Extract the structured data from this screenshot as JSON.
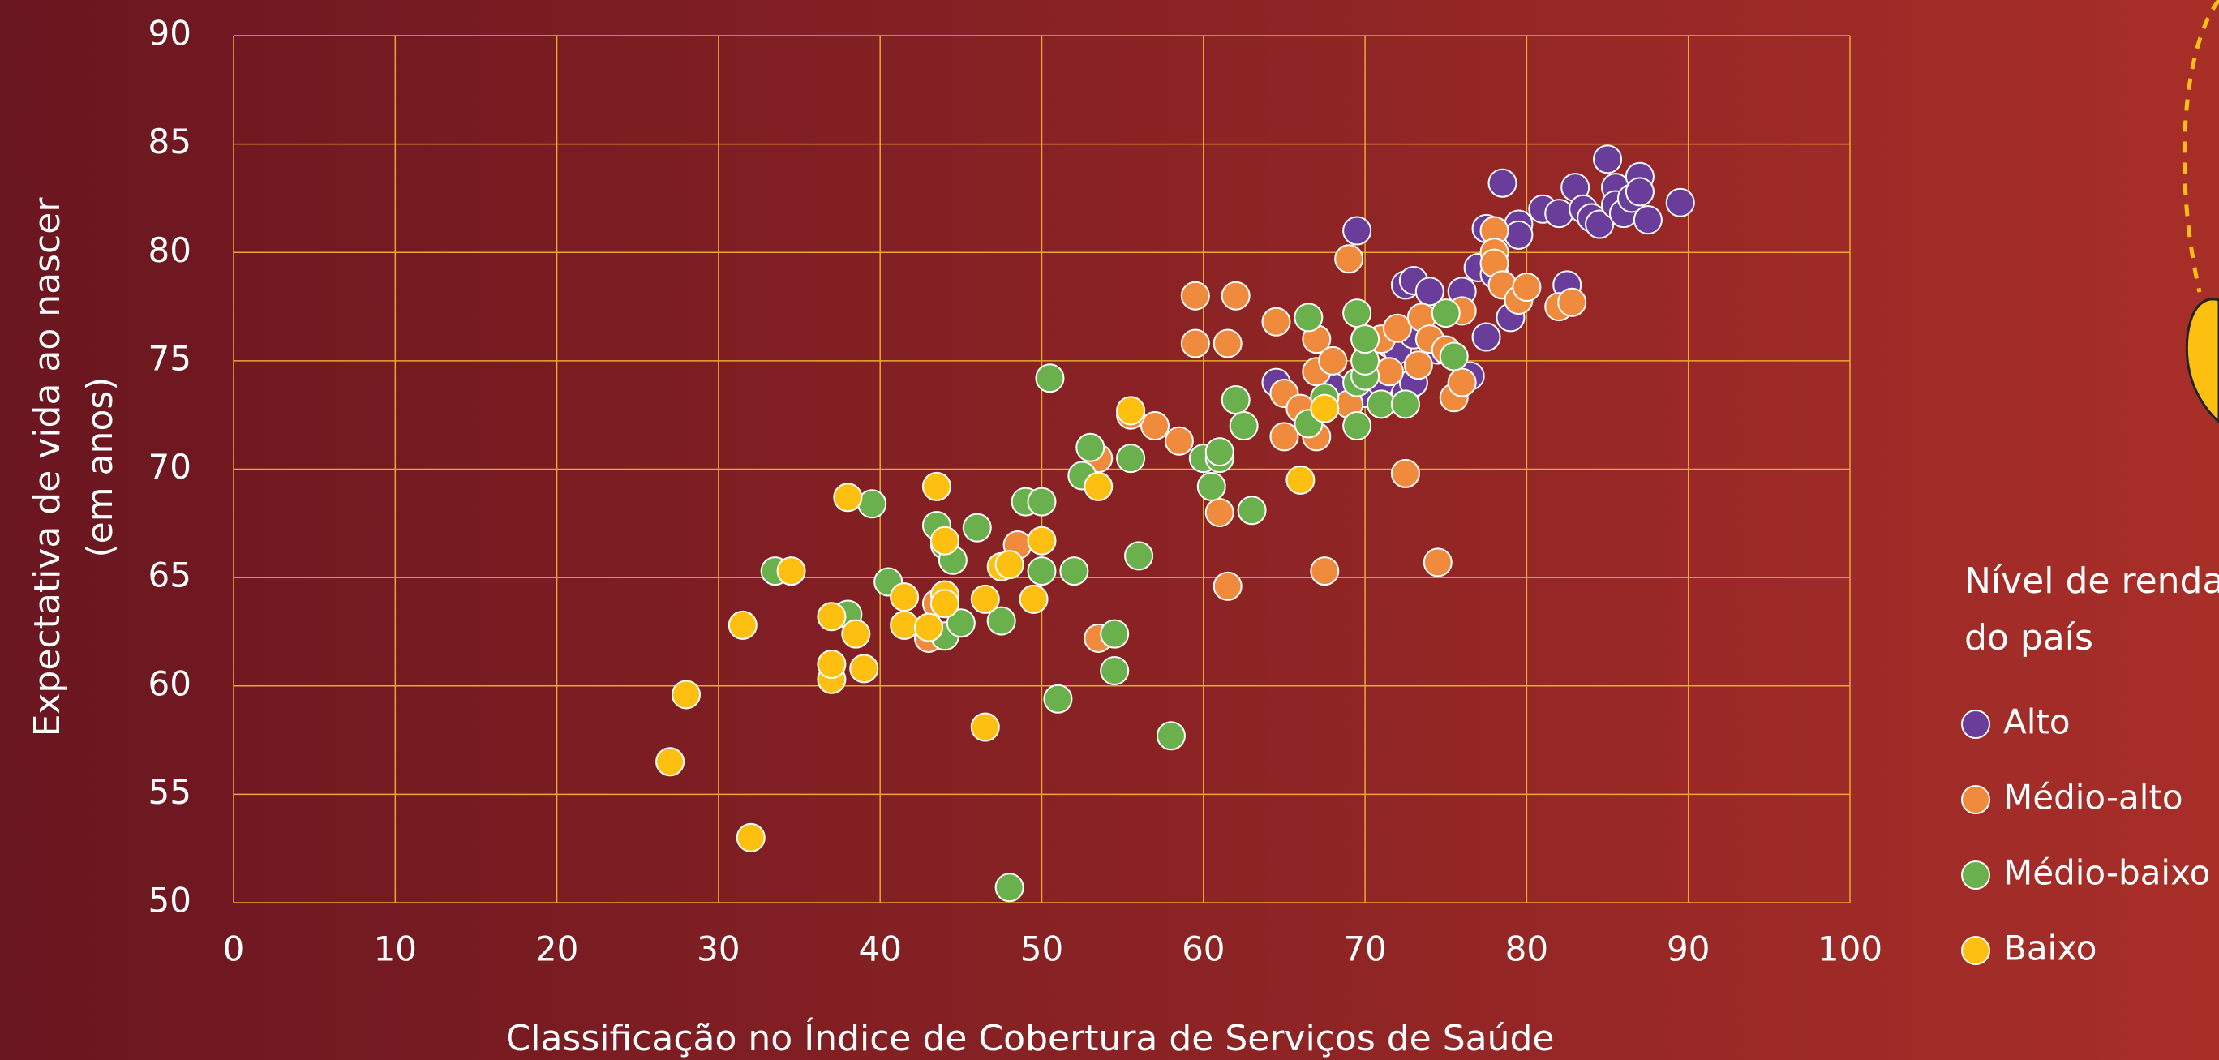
{
  "chart_data": {
    "type": "scatter",
    "xlabel": "Classificação no Índice de Cobertura de Serviços de Saúde",
    "ylabel": [
      "Expectativa de vida ao nascer",
      "(em anos)"
    ],
    "legend_title": [
      "Nível de renda",
      "do país"
    ],
    "legend": "right",
    "grid": true,
    "xlim": [
      0,
      100
    ],
    "xticks": [
      0,
      10,
      20,
      30,
      40,
      50,
      60,
      70,
      80,
      90,
      100
    ],
    "ylim": [
      50,
      90
    ],
    "yticks": [
      50,
      55,
      60,
      65,
      70,
      75,
      80,
      85,
      90
    ],
    "series": [
      {
        "name": "Alto",
        "color": "#6a3d9a",
        "x": [
          69.5,
          64.5,
          72.5,
          73,
          74,
          76,
          77,
          77.5,
          78.5,
          79.5,
          79.5,
          78,
          79,
          77.5,
          76.5,
          82.5,
          81,
          82,
          83,
          83.5,
          84,
          84.5,
          85,
          85.5,
          85.5,
          86,
          86.5,
          87,
          87,
          87.5,
          89.5,
          70,
          71,
          71.5,
          72,
          73,
          74.5,
          68,
          72.5,
          73
        ],
        "values": [
          81,
          74,
          78.5,
          78.7,
          78.2,
          78.2,
          79.3,
          81.1,
          83.2,
          81.3,
          80.8,
          79,
          77,
          76.1,
          74.3,
          78.5,
          82,
          81.8,
          83,
          82,
          81.6,
          81.3,
          84.3,
          83,
          82.2,
          81.8,
          82.5,
          83.5,
          82.8,
          81.5,
          82.3,
          73.5,
          74,
          75.8,
          75.5,
          76.2,
          75.5,
          73.8,
          73.5,
          74
        ]
      },
      {
        "name": "Médio-alto",
        "color": "#f08a3c",
        "x": [
          59.5,
          62,
          59.5,
          61.5,
          64.5,
          67,
          69,
          70,
          71,
          72,
          73.5,
          74,
          75,
          76,
          78,
          78,
          78,
          78.5,
          79.5,
          80,
          82,
          82.8,
          65,
          66,
          65,
          67,
          67,
          68,
          69,
          71.5,
          73.3,
          75.5,
          76,
          57,
          55.5,
          58.5,
          53.5,
          61,
          61.5,
          67.5,
          72.5,
          74.5,
          53.5,
          48.5,
          43,
          43.5
        ],
        "values": [
          78,
          78,
          75.8,
          75.8,
          76.8,
          76,
          79.7,
          76,
          76,
          76.5,
          77,
          76,
          75.5,
          77.3,
          81,
          80,
          79.5,
          78.5,
          77.8,
          78.4,
          77.5,
          77.7,
          73.5,
          72.8,
          71.5,
          71.5,
          74.5,
          75,
          73,
          74.5,
          74.8,
          73.3,
          74,
          72,
          72.5,
          71.3,
          70.5,
          68,
          64.6,
          65.3,
          69.8,
          65.7,
          62.2,
          66.5,
          62.2,
          63.8
        ]
      },
      {
        "name": "Médio-baixo",
        "color": "#6ab04c",
        "x": [
          50.5,
          53,
          52.5,
          55.5,
          39.5,
          43.5,
          46,
          49,
          50,
          44,
          44.5,
          40.5,
          33.5,
          38,
          44,
          45,
          47.5,
          50,
          52,
          56,
          54.5,
          54.5,
          51,
          58,
          48,
          60,
          61,
          61,
          60.5,
          62,
          62.5,
          63,
          66.5,
          66.5,
          69.5,
          67.5,
          69.5,
          70,
          70,
          71,
          69.5,
          72.5,
          75,
          75.5,
          70
        ],
        "values": [
          74.2,
          71,
          69.7,
          70.5,
          68.4,
          67.4,
          67.3,
          68.5,
          68.5,
          66.5,
          65.8,
          64.8,
          65.3,
          63.3,
          62.3,
          62.9,
          63,
          65.3,
          65.3,
          66,
          62.4,
          60.7,
          59.4,
          57.7,
          50.7,
          70.5,
          70.5,
          70.8,
          69.2,
          73.2,
          72,
          68.1,
          72.1,
          77,
          77.2,
          73.3,
          74,
          74.3,
          75,
          73,
          72,
          73,
          77.2,
          75.2,
          76
        ]
      },
      {
        "name": "Baixo",
        "color": "#fdc010",
        "x": [
          27,
          28,
          31.5,
          32,
          34.5,
          37,
          37,
          37,
          38,
          38.5,
          39,
          41.5,
          41.5,
          43,
          43.5,
          44,
          44,
          44,
          46.5,
          46.5,
          47.5,
          48,
          49.5,
          50,
          53.5,
          55.5,
          66,
          67.5
        ],
        "values": [
          56.5,
          59.6,
          62.8,
          53,
          65.3,
          63.2,
          60.3,
          61,
          68.7,
          62.4,
          60.8,
          64.1,
          62.8,
          62.7,
          69.2,
          66.7,
          64.2,
          63.8,
          64,
          58.1,
          65.5,
          65.6,
          64,
          66.7,
          69.2,
          72.7,
          69.5,
          72.8
        ]
      }
    ]
  }
}
